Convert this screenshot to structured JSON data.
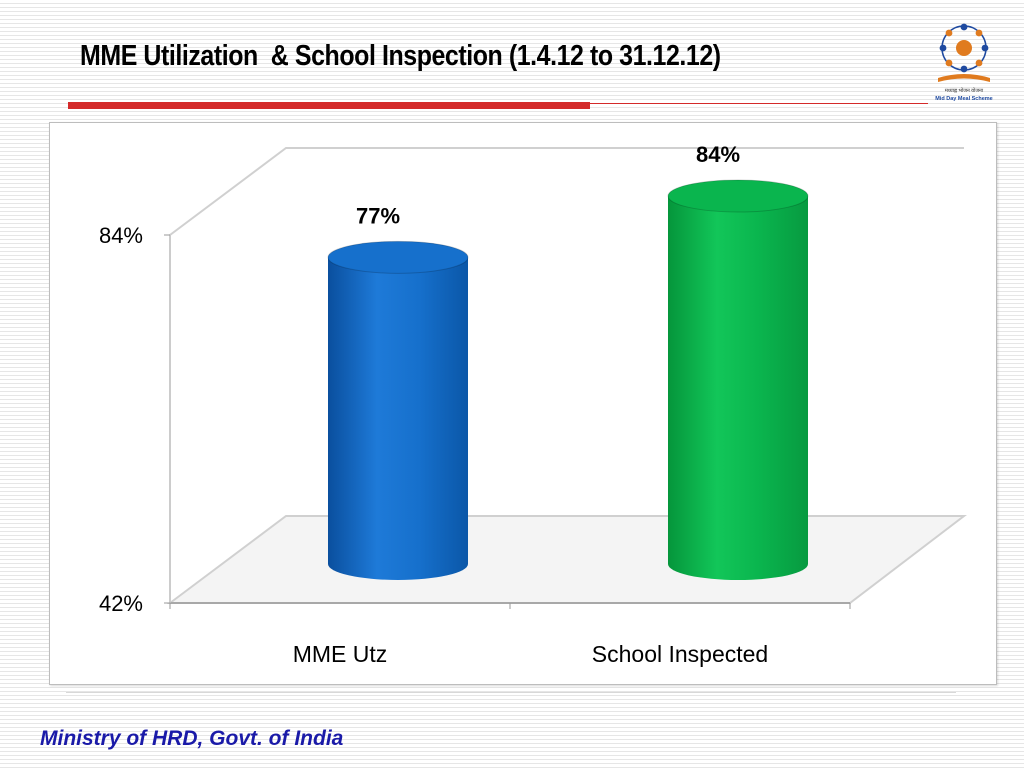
{
  "slide": {
    "title": "MME Utilization  & School Inspection (1.4.12 to 31.12.12)",
    "footer": "Ministry of HRD, Govt. of India",
    "logo_text_hindi": "मध्याह्न भोजन योजना",
    "logo_text_english": "Mid Day Meal Scheme"
  },
  "chart_data": {
    "type": "bar",
    "style": "3d-cylinder",
    "categories": [
      "MME Utz",
      "School Inspected"
    ],
    "values": [
      77,
      84
    ],
    "value_labels": [
      "77%",
      "84%"
    ],
    "colors": [
      "#1670cc",
      "#0ab54e"
    ],
    "ylim": [
      42,
      84
    ],
    "y_tick_labels": [
      "42%",
      "84%"
    ],
    "grid": false,
    "legend": "none"
  }
}
